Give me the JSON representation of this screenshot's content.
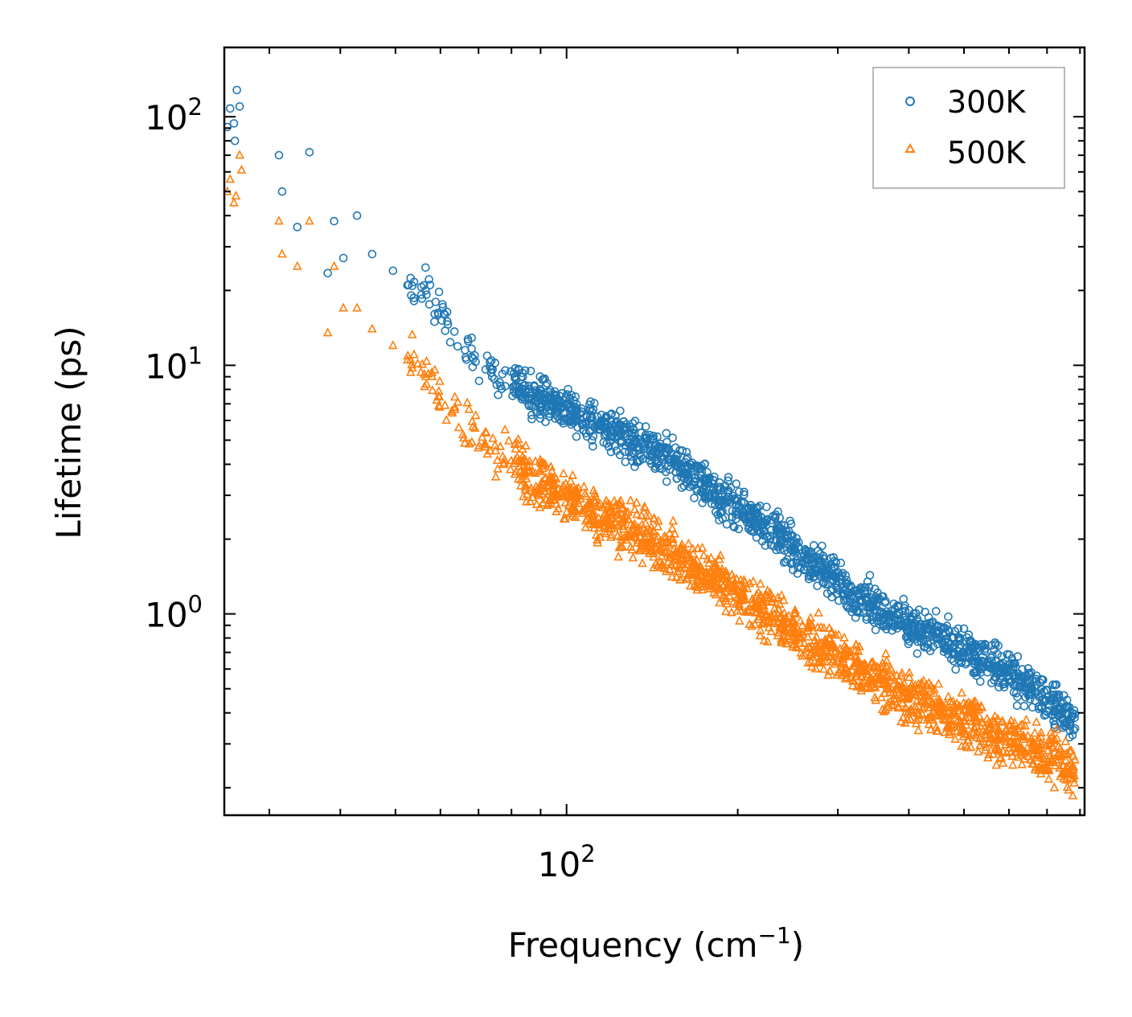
{
  "chart_data": {
    "type": "scatter",
    "title": "",
    "xlabel": "Frequency (cm",
    "xlabel_sup": "−1",
    "xlabel_close": ")",
    "ylabel": "Lifetime (ps)",
    "xscale": "log",
    "yscale": "log",
    "xlim": [
      25,
      815
    ],
    "ylim": [
      0.155,
      190
    ],
    "x_ticks": [
      {
        "value": 100,
        "base": "10",
        "exp": "2"
      }
    ],
    "y_ticks": [
      {
        "value": 1,
        "base": "10",
        "exp": "0"
      },
      {
        "value": 10,
        "base": "10",
        "exp": "1"
      },
      {
        "value": 100,
        "base": "10",
        "exp": "2"
      }
    ],
    "legend_position": "top-right",
    "series": [
      {
        "name": "300K",
        "marker": "circle",
        "color": "#1f77b4",
        "anchors": [
          [
            25.3,
            91
          ],
          [
            25.6,
            108
          ],
          [
            26.0,
            94
          ],
          [
            26.1,
            80
          ],
          [
            26.3,
            128
          ],
          [
            26.6,
            110
          ],
          [
            31.2,
            70
          ],
          [
            31.6,
            50
          ],
          [
            33.6,
            36
          ],
          [
            35.3,
            72
          ],
          [
            38.0,
            23.5
          ],
          [
            39.0,
            38
          ],
          [
            40.5,
            27
          ],
          [
            42.8,
            40
          ],
          [
            45.5,
            28
          ],
          [
            49.5,
            24
          ],
          [
            52.5,
            21
          ],
          [
            56.5,
            20
          ],
          [
            59.5,
            16
          ],
          [
            64.5,
            12
          ],
          [
            69.5,
            10.5
          ],
          [
            75.0,
            9.2
          ],
          [
            81.0,
            8.3
          ],
          [
            87.0,
            7.6
          ],
          [
            94.0,
            7.0
          ],
          [
            100,
            6.6
          ],
          [
            110,
            6.0
          ],
          [
            120,
            5.5
          ],
          [
            130,
            5.05
          ],
          [
            140,
            4.6
          ],
          [
            150,
            4.2
          ],
          [
            160,
            3.85
          ],
          [
            170,
            3.5
          ],
          [
            180,
            3.2
          ],
          [
            195,
            2.8
          ],
          [
            210,
            2.5
          ],
          [
            230,
            2.15
          ],
          [
            250,
            1.85
          ],
          [
            270,
            1.6
          ],
          [
            290,
            1.42
          ],
          [
            310,
            1.28
          ],
          [
            340,
            1.12
          ],
          [
            370,
            1.0
          ],
          [
            400,
            0.9
          ],
          [
            440,
            0.82
          ],
          [
            480,
            0.74
          ],
          [
            520,
            0.68
          ],
          [
            560,
            0.62
          ],
          [
            600,
            0.57
          ],
          [
            650,
            0.52
          ],
          [
            700,
            0.46
          ],
          [
            750,
            0.4
          ],
          [
            785,
            0.35
          ]
        ],
        "spread_dex": 0.09
      },
      {
        "name": "500K",
        "marker": "triangle",
        "color": "#ff7f0e",
        "anchors": [
          [
            25.3,
            50
          ],
          [
            25.6,
            56
          ],
          [
            26.0,
            45
          ],
          [
            26.2,
            48
          ],
          [
            26.6,
            70
          ],
          [
            26.8,
            61
          ],
          [
            31.2,
            38
          ],
          [
            31.6,
            28
          ],
          [
            33.6,
            25
          ],
          [
            35.3,
            38
          ],
          [
            38.0,
            13.5
          ],
          [
            39.0,
            25
          ],
          [
            40.5,
            17
          ],
          [
            42.8,
            17
          ],
          [
            45.5,
            14
          ],
          [
            49.5,
            12
          ],
          [
            52.5,
            10.5
          ],
          [
            56.5,
            9.0
          ],
          [
            59.5,
            7.5
          ],
          [
            64.5,
            6.2
          ],
          [
            69.5,
            5.2
          ],
          [
            75.0,
            4.5
          ],
          [
            81.0,
            4.0
          ],
          [
            87.0,
            3.55
          ],
          [
            94.0,
            3.2
          ],
          [
            100,
            2.95
          ],
          [
            110,
            2.65
          ],
          [
            120,
            2.4
          ],
          [
            130,
            2.2
          ],
          [
            140,
            2.0
          ],
          [
            150,
            1.82
          ],
          [
            160,
            1.65
          ],
          [
            170,
            1.52
          ],
          [
            180,
            1.4
          ],
          [
            195,
            1.25
          ],
          [
            210,
            1.12
          ],
          [
            230,
            0.98
          ],
          [
            250,
            0.86
          ],
          [
            270,
            0.77
          ],
          [
            290,
            0.7
          ],
          [
            310,
            0.64
          ],
          [
            340,
            0.57
          ],
          [
            370,
            0.51
          ],
          [
            400,
            0.46
          ],
          [
            440,
            0.42
          ],
          [
            480,
            0.39
          ],
          [
            520,
            0.36
          ],
          [
            560,
            0.33
          ],
          [
            600,
            0.31
          ],
          [
            650,
            0.29
          ],
          [
            700,
            0.27
          ],
          [
            750,
            0.25
          ],
          [
            785,
            0.23
          ]
        ],
        "spread_dex": 0.11
      }
    ]
  }
}
